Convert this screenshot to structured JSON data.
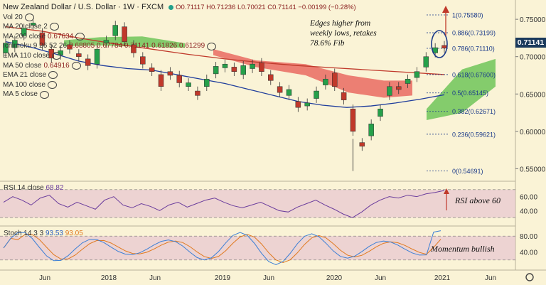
{
  "header": {
    "symbol_title": "New Zealand Dollar / U.S. Dollar · 1W · FXCM",
    "ohlc": "O0.71117 H0.71236 L0.70021 C0.71141 −0.00199 (−0.28%)",
    "accent_dot_color": "#22a08a"
  },
  "indicators": [
    {
      "label": "Vol 20",
      "value": ""
    },
    {
      "label": "MA 20 close 2",
      "value": ""
    },
    {
      "label": "MA 200 close",
      "value": "0.67634"
    },
    {
      "label": "Ichimoku 9 26 52 26",
      "value": "0.68805 0.67784 0.71141 0.61826 0.61299"
    },
    {
      "label": "EMA 110 close",
      "value": ""
    },
    {
      "label": "MA 50 close",
      "value": "0.64916"
    },
    {
      "label": "EMA 21 close",
      "value": ""
    },
    {
      "label": "MA 100 close",
      "value": ""
    },
    {
      "label": "MA 5 close",
      "value": ""
    }
  ],
  "annotations": {
    "main_note": "Edges higher from weekly lows, retakes 78.6% Fib",
    "rsi_note": "RSI above 60",
    "stoch_note": "Momentum bullish"
  },
  "rsi_panel": {
    "label": "RSI 14 close",
    "value": "68.82",
    "ticks": [
      "60.00",
      "40.00"
    ]
  },
  "stoch_panel": {
    "label": "Stoch 14 3 3",
    "k": "93.53",
    "d": "93.05",
    "ticks": [
      "80.00",
      "40.00"
    ]
  },
  "current_price": "0.71141",
  "chart_data": {
    "type": "candlestick",
    "price_axis_ticks": [
      "0.75000",
      "0.70000",
      "0.65000",
      "0.60000",
      "0.55000"
    ],
    "x_ticks": [
      "Jun",
      "2018",
      "Jun",
      "2019",
      "Jun",
      "2020",
      "Jun",
      "2021",
      "Jun"
    ],
    "fib_levels": [
      {
        "label": "1(0.75580)",
        "value": 0.7558
      },
      {
        "label": "0.886(0.73199)",
        "value": 0.73199
      },
      {
        "label": "0.786(0.71110)",
        "value": 0.7111
      },
      {
        "label": "0.618(0.67600)",
        "value": 0.676
      },
      {
        "label": "0.5(0.65145)",
        "value": 0.65145
      },
      {
        "label": "0.382(0.62671)",
        "value": 0.62671
      },
      {
        "label": "0.236(0.59621)",
        "value": 0.59621
      },
      {
        "label": "0(0.54691)",
        "value": 0.54691
      }
    ],
    "price_path": [
      [
        0.705,
        0.718
      ],
      [
        0.712,
        0.722
      ],
      [
        0.728,
        0.738
      ],
      [
        0.742,
        0.745
      ],
      [
        0.732,
        0.715
      ],
      [
        0.71,
        0.698
      ],
      [
        0.702,
        0.708
      ],
      [
        0.716,
        0.71
      ],
      [
        0.704,
        0.7
      ],
      [
        0.697,
        0.688
      ],
      [
        0.69,
        0.71
      ],
      [
        0.718,
        0.722
      ],
      [
        0.728,
        0.742
      ],
      [
        0.74,
        0.72
      ],
      [
        0.716,
        0.705
      ],
      [
        0.7,
        0.69
      ],
      [
        0.685,
        0.68
      ],
      [
        0.676,
        0.66
      ],
      [
        0.68,
        0.675
      ],
      [
        0.675,
        0.665
      ],
      [
        0.66,
        0.665
      ],
      [
        0.654,
        0.648
      ],
      [
        0.66,
        0.67
      ],
      [
        0.677,
        0.687
      ],
      [
        0.685,
        0.69
      ],
      [
        0.686,
        0.68
      ],
      [
        0.676,
        0.688
      ],
      [
        0.684,
        0.69
      ],
      [
        0.692,
        0.68
      ],
      [
        0.676,
        0.668
      ],
      [
        0.66,
        0.652
      ],
      [
        0.648,
        0.656
      ],
      [
        0.64,
        0.632
      ],
      [
        0.634,
        0.638
      ],
      [
        0.644,
        0.654
      ],
      [
        0.662,
        0.67
      ],
      [
        0.678,
        0.66
      ],
      [
        0.652,
        0.642
      ],
      [
        0.63,
        0.6
      ],
      [
        0.585,
        0.58
      ],
      [
        0.594,
        0.61
      ],
      [
        0.62,
        0.63
      ],
      [
        0.648,
        0.66
      ],
      [
        0.66,
        0.656
      ],
      [
        0.664,
        0.67
      ],
      [
        0.672,
        0.68
      ],
      [
        0.686,
        0.7
      ],
      [
        0.705,
        0.712
      ],
      [
        0.715,
        0.7114
      ]
    ],
    "notable_low": 0.5469,
    "last_close": 0.71141,
    "ma200": [
      0.74,
      0.734,
      0.725,
      0.717,
      0.71,
      0.703,
      0.697,
      0.692,
      0.688,
      0.685,
      0.682,
      0.679,
      0.676
    ],
    "ma50": [
      0.72,
      0.713,
      0.704,
      0.694,
      0.688,
      0.684,
      0.682,
      0.676,
      0.67,
      0.664,
      0.656,
      0.648,
      0.64,
      0.635,
      0.632,
      0.634,
      0.638,
      0.643,
      0.649
    ]
  },
  "colors": {
    "background": "#faf3d6",
    "bull_candle": "#26a04a",
    "bear_candle": "#c0392b",
    "cloud_bull": "#5cbf48",
    "cloud_bear": "#e8625a",
    "ma200_line": "#c0392b",
    "ma50_line": "#1f3d9c",
    "rsi_line": "#6a3c9c",
    "stoch_k": "#3c7fd6",
    "stoch_d": "#e07a20",
    "band_fill": "#e2b8d0"
  }
}
